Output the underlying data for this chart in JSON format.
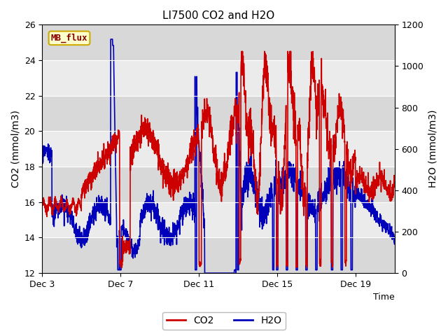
{
  "title": "LI7500 CO2 and H2O",
  "xlabel": "Time",
  "ylabel_left": "CO2 (mmol/m3)",
  "ylabel_right": "H2O (mmol/m3)",
  "ylim_left": [
    12,
    26
  ],
  "ylim_right": [
    0,
    1200
  ],
  "yticks_left": [
    12,
    14,
    16,
    18,
    20,
    22,
    24,
    26
  ],
  "yticks_right": [
    0,
    200,
    400,
    600,
    800,
    1000,
    1200
  ],
  "xtick_labels": [
    "Dec 3",
    "Dec 7",
    "Dec 11",
    "Dec 15",
    "Dec 19"
  ],
  "xtick_pos": [
    0,
    4,
    8,
    12,
    16
  ],
  "xlim": [
    0,
    18
  ],
  "co2_color": "#cc0000",
  "h2o_color": "#0000bb",
  "bg_color": "#ffffff",
  "plot_bg_light": "#ebebeb",
  "plot_bg_dark": "#d8d8d8",
  "annotation_text": "MB_flux",
  "annotation_fg": "#880000",
  "annotation_bg": "#ffffcc",
  "annotation_border": "#ccaa00",
  "title_fontsize": 11,
  "axis_label_fontsize": 10,
  "tick_fontsize": 9,
  "legend_fontsize": 10,
  "linewidth": 1.2
}
